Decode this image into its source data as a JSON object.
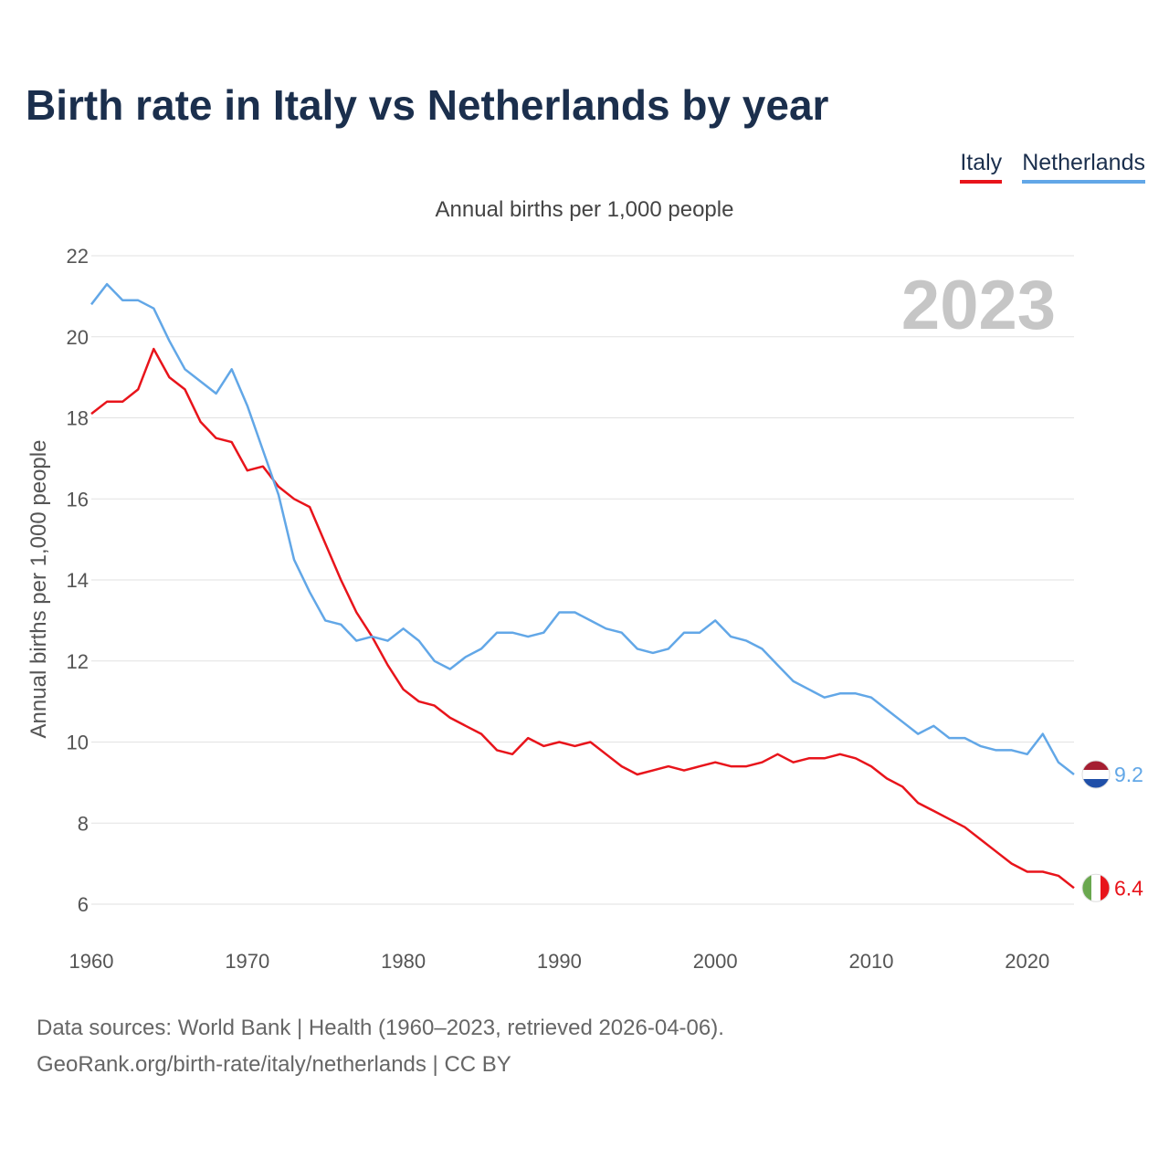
{
  "title": "Birth rate in Italy vs Netherlands by year",
  "subtitle": "Annual births per 1,000 people",
  "legend": [
    {
      "label": "Italy",
      "color": "#e8141b"
    },
    {
      "label": "Netherlands",
      "color": "#62a7e7"
    }
  ],
  "source": {
    "line1": "Data sources: World Bank | Health (1960–2023, retrieved 2026-04-06).",
    "line2": "GeoRank.org/birth-rate/italy/netherlands | CC BY"
  },
  "chart_data": {
    "type": "line",
    "title": "Birth rate in Italy vs Netherlands by year",
    "xlabel": "",
    "ylabel": "Annual births per 1,000 people",
    "xlim": [
      1960,
      2023
    ],
    "ylim": [
      6,
      22
    ],
    "yticks": [
      6,
      8,
      10,
      12,
      14,
      16,
      18,
      20,
      22
    ],
    "xticks": [
      1960,
      1970,
      1980,
      1990,
      2000,
      2010,
      2020
    ],
    "year_label": "2023",
    "grid": true,
    "x": [
      1960,
      1961,
      1962,
      1963,
      1964,
      1965,
      1966,
      1967,
      1968,
      1969,
      1970,
      1971,
      1972,
      1973,
      1974,
      1975,
      1976,
      1977,
      1978,
      1979,
      1980,
      1981,
      1982,
      1983,
      1984,
      1985,
      1986,
      1987,
      1988,
      1989,
      1990,
      1991,
      1992,
      1993,
      1994,
      1995,
      1996,
      1997,
      1998,
      1999,
      2000,
      2001,
      2002,
      2003,
      2004,
      2005,
      2006,
      2007,
      2008,
      2009,
      2010,
      2011,
      2012,
      2013,
      2014,
      2015,
      2016,
      2017,
      2018,
      2019,
      2020,
      2021,
      2022,
      2023
    ],
    "series": [
      {
        "name": "Italy",
        "color": "#e8141b",
        "end_label": "6.4",
        "values": [
          18.1,
          18.4,
          18.4,
          18.7,
          19.7,
          19.0,
          18.7,
          17.9,
          17.5,
          17.4,
          16.7,
          16.8,
          16.3,
          16.0,
          15.8,
          14.9,
          14.0,
          13.2,
          12.6,
          11.9,
          11.3,
          11.0,
          10.9,
          10.6,
          10.4,
          10.2,
          9.8,
          9.7,
          10.1,
          9.9,
          10.0,
          9.9,
          10.0,
          9.7,
          9.4,
          9.2,
          9.3,
          9.4,
          9.3,
          9.4,
          9.5,
          9.4,
          9.4,
          9.5,
          9.7,
          9.5,
          9.6,
          9.6,
          9.7,
          9.6,
          9.4,
          9.1,
          8.9,
          8.5,
          8.3,
          8.1,
          7.9,
          7.6,
          7.3,
          7.0,
          6.8,
          6.8,
          6.7,
          6.4
        ]
      },
      {
        "name": "Netherlands",
        "color": "#62a7e7",
        "end_label": "9.2",
        "values": [
          20.8,
          21.3,
          20.9,
          20.9,
          20.7,
          19.9,
          19.2,
          18.9,
          18.6,
          19.2,
          18.3,
          17.2,
          16.1,
          14.5,
          13.7,
          13.0,
          12.9,
          12.5,
          12.6,
          12.5,
          12.8,
          12.5,
          12.0,
          11.8,
          12.1,
          12.3,
          12.7,
          12.7,
          12.6,
          12.7,
          13.2,
          13.2,
          13.0,
          12.8,
          12.7,
          12.3,
          12.2,
          12.3,
          12.7,
          12.7,
          13.0,
          12.6,
          12.5,
          12.3,
          11.9,
          11.5,
          11.3,
          11.1,
          11.2,
          11.2,
          11.1,
          10.8,
          10.5,
          10.2,
          10.4,
          10.1,
          10.1,
          9.9,
          9.8,
          9.8,
          9.7,
          10.2,
          9.5,
          9.2
        ]
      }
    ]
  }
}
